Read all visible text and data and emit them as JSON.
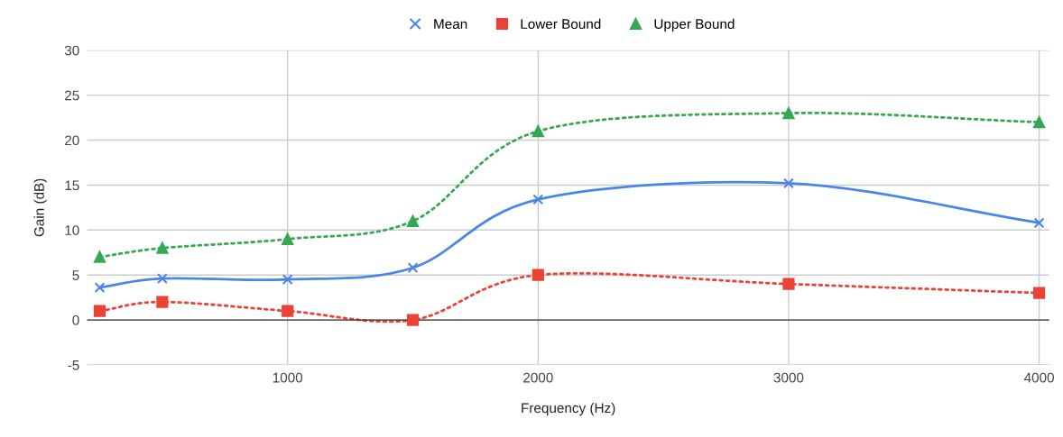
{
  "chart_data": {
    "type": "line",
    "xlabel": "Frequency (Hz)",
    "ylabel": "Gain (dB)",
    "x": [
      250,
      500,
      1000,
      1500,
      2000,
      3000,
      4000
    ],
    "series": [
      {
        "name": "Mean",
        "color": "#4a86e8",
        "values": [
          3.6,
          4.6,
          4.5,
          5.8,
          13.4,
          15.2,
          10.8
        ],
        "marker": "cross",
        "line_style": "solid"
      },
      {
        "name": "Lower Bound",
        "color": "#ea4335",
        "values": [
          1,
          2,
          1,
          0,
          5,
          4,
          3
        ],
        "marker": "square",
        "line_style": "dotted"
      },
      {
        "name": "Upper Bound",
        "color": "#34a853",
        "values": [
          7,
          8,
          9,
          11,
          21,
          23,
          22
        ],
        "marker": "triangle",
        "line_style": "dotted"
      }
    ],
    "xlim": [
      200,
      4040
    ],
    "xticks": [
      1000,
      2000,
      3000,
      4000
    ],
    "ylim": [
      -5,
      30
    ],
    "yticks": [
      -5,
      0,
      5,
      10,
      15,
      20,
      25,
      30
    ],
    "grid": true,
    "legend": "top",
    "ref_lines": [
      {
        "axis": "y",
        "value": 0,
        "color": "#333333"
      }
    ]
  }
}
